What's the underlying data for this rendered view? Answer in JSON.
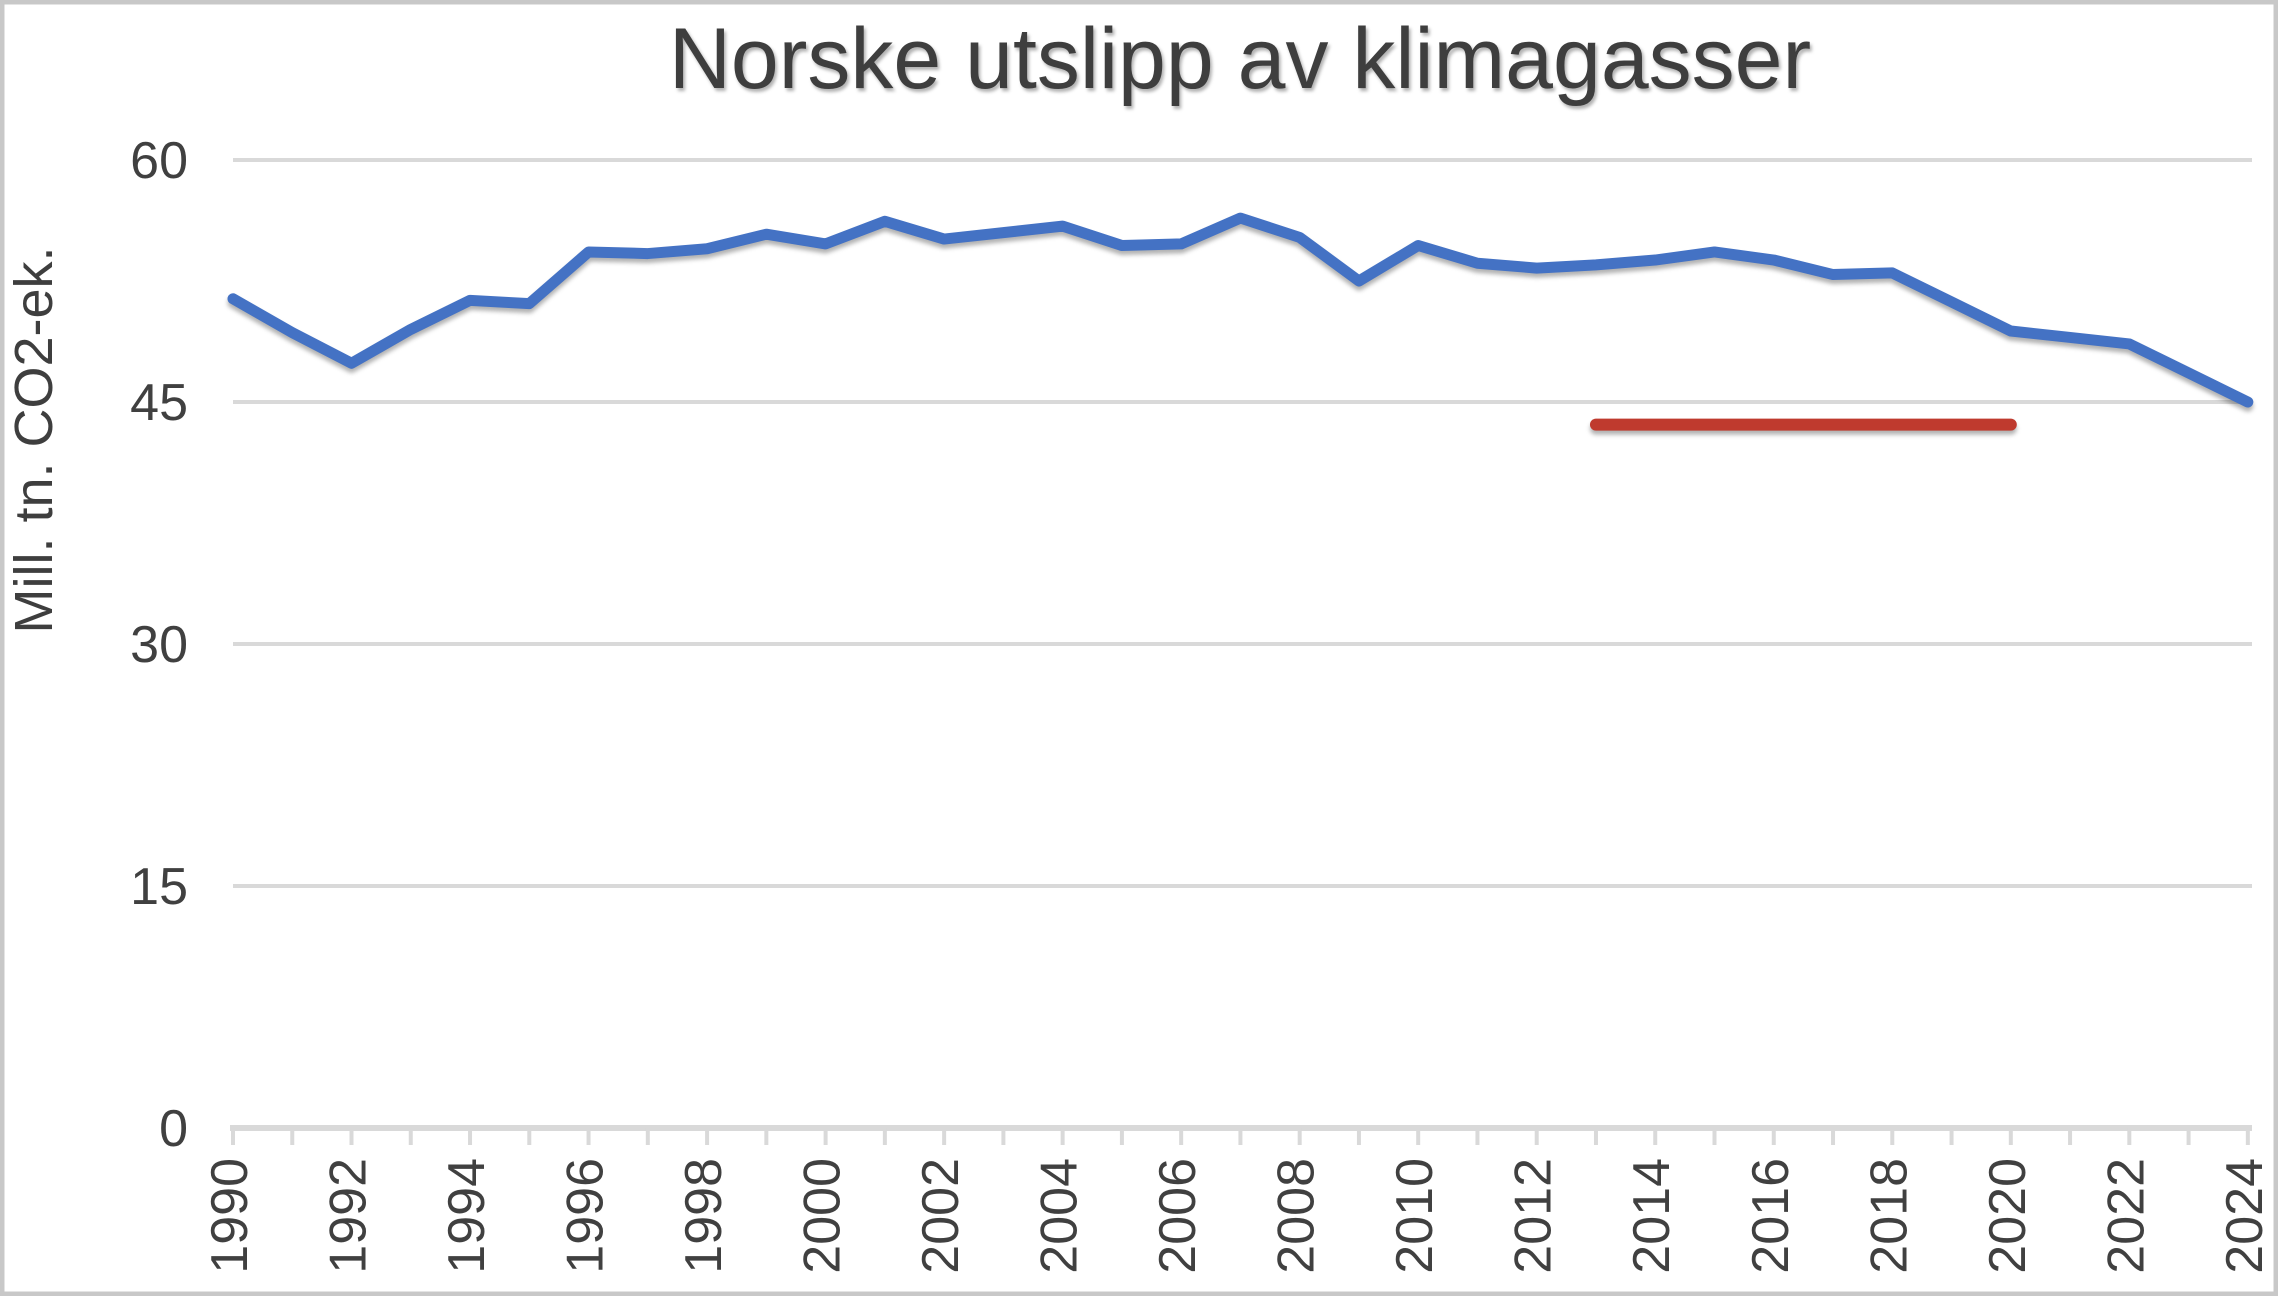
{
  "frame": {
    "border_color": "#c8c8c8",
    "background": "#ffffff"
  },
  "chart_data": {
    "type": "line",
    "title": "Norske utslipp av klimagasser",
    "xlabel": "",
    "ylabel": "Mill. tn. CO2-ek.",
    "ylim": [
      0,
      60
    ],
    "yticks": [
      0,
      15,
      30,
      45,
      60
    ],
    "x_label_step": 2,
    "grid": "horizontal",
    "legend_position": "none",
    "x": [
      1990,
      1991,
      1992,
      1993,
      1994,
      1995,
      1996,
      1997,
      1998,
      1999,
      2000,
      2001,
      2002,
      2003,
      2004,
      2005,
      2006,
      2007,
      2008,
      2009,
      2010,
      2011,
      2012,
      2013,
      2014,
      2015,
      2016,
      2017,
      2018,
      2019,
      2020,
      2021,
      2022,
      2023,
      2024
    ],
    "series": [
      {
        "name": "emissions-line",
        "color": "#4472c4",
        "stroke_width": 11,
        "values": [
          51.4,
          49.3,
          47.4,
          49.5,
          51.3,
          51.1,
          54.3,
          54.2,
          54.5,
          55.4,
          54.8,
          56.2,
          55.1,
          55.5,
          55.9,
          54.7,
          54.8,
          56.4,
          55.2,
          52.5,
          54.7,
          53.6,
          53.3,
          53.5,
          53.8,
          54.3,
          53.8,
          52.9,
          53.0,
          51.2,
          49.4,
          49.0,
          48.6,
          46.8,
          45.0
        ]
      }
    ],
    "target_line": {
      "name": "target-line",
      "color": "#bf3a2e",
      "stroke_width": 12,
      "start_year": 2013,
      "end_year": 2020,
      "value": 43.6
    },
    "axis_colors": {
      "grid": "#d9d9d9",
      "axis_line": "#d9d9d9",
      "tick": "#d9d9d9",
      "text": "#404040"
    }
  }
}
